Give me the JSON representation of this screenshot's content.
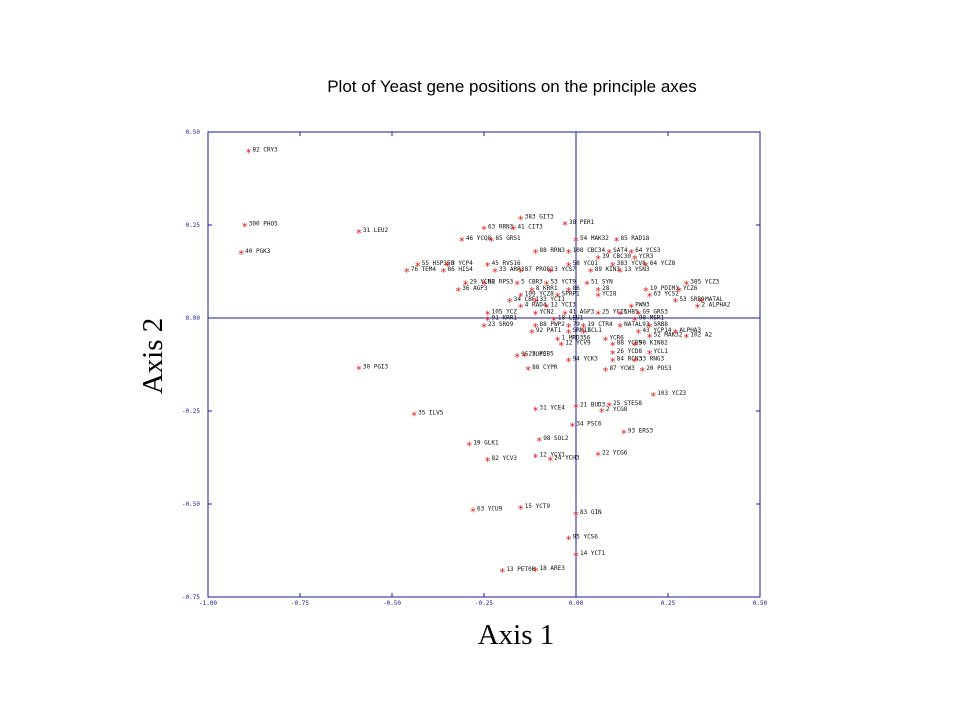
{
  "chart_data": {
    "type": "scatter",
    "title": "Plot of Yeast gene positions on the principle axes",
    "xlabel": "Axis 1",
    "ylabel": "Axis 2",
    "xlim": [
      -1.0,
      0.5
    ],
    "ylim": [
      -0.75,
      0.5
    ],
    "xticks": [
      -1.0,
      -0.75,
      -0.5,
      -0.25,
      0.0,
      0.25,
      0.5
    ],
    "xtick_labels": [
      "-1.00",
      "-0.75",
      "-0.50",
      "-0.25",
      "0.00",
      "0.25",
      "0.50"
    ],
    "yticks": [
      0.5,
      0.25,
      0.0,
      -0.25,
      -0.5,
      -0.75
    ],
    "ytick_labels": [
      "0.50",
      "0.25",
      "0.00",
      "-0.25",
      "-0.50",
      "-0.75"
    ],
    "colors": {
      "axis": "#1a1aa0",
      "points": "#e01010",
      "labels": "#111111"
    },
    "points": [
      {
        "label": "82 CRY3",
        "x": -0.89,
        "y": 0.445
      },
      {
        "label": "300 PHO5",
        "x": -0.9,
        "y": 0.246
      },
      {
        "label": "40 PGK3",
        "x": -0.91,
        "y": 0.172
      },
      {
        "label": "31 LEU2",
        "x": -0.59,
        "y": 0.228
      },
      {
        "label": "30 PGI3",
        "x": -0.59,
        "y": -0.138
      },
      {
        "label": "35 ILV5",
        "x": -0.44,
        "y": -0.262
      },
      {
        "label": "19 GLK1",
        "x": -0.29,
        "y": -0.343
      },
      {
        "label": "82 YCV3",
        "x": -0.24,
        "y": -0.385
      },
      {
        "label": "63 YCU9",
        "x": -0.28,
        "y": -0.52
      },
      {
        "label": "15 YCT9",
        "x": -0.15,
        "y": -0.513
      },
      {
        "label": "13 PET0R",
        "x": -0.2,
        "y": -0.683
      },
      {
        "label": "18 ARE3",
        "x": -0.11,
        "y": -0.68
      },
      {
        "label": "14 YCT1",
        "x": 0.0,
        "y": -0.64
      },
      {
        "label": "95 YCS6",
        "x": -0.02,
        "y": -0.596
      },
      {
        "label": "83 GIN",
        "x": 0.0,
        "y": -0.53
      },
      {
        "label": "22 YCG6",
        "x": 0.06,
        "y": -0.37
      },
      {
        "label": "24 YCH3",
        "x": -0.07,
        "y": -0.383
      },
      {
        "label": "12 YCY1",
        "x": -0.11,
        "y": -0.375
      },
      {
        "label": "93 ERS3",
        "x": 0.13,
        "y": -0.31
      },
      {
        "label": "98 SOL2",
        "x": -0.1,
        "y": -0.33
      },
      {
        "label": "34 PSC6",
        "x": -0.01,
        "y": -0.292
      },
      {
        "label": "31 YCE4",
        "x": -0.11,
        "y": -0.248
      },
      {
        "label": "21 BUD3",
        "x": 0.0,
        "y": -0.24
      },
      {
        "label": "25 STE58",
        "x": 0.09,
        "y": -0.237
      },
      {
        "label": "2 YCG8",
        "x": 0.07,
        "y": -0.253
      },
      {
        "label": "103 YCZ3",
        "x": 0.21,
        "y": -0.21
      },
      {
        "label": "95 YOP3",
        "x": -0.16,
        "y": -0.105
      },
      {
        "label": "23 YCB5",
        "x": -0.14,
        "y": -0.103
      },
      {
        "label": "88 CYPR",
        "x": -0.13,
        "y": -0.14
      },
      {
        "label": "94 YCK3",
        "x": -0.02,
        "y": -0.117
      },
      {
        "label": "84 RCN3",
        "x": 0.1,
        "y": -0.117
      },
      {
        "label": "33 RNG3",
        "x": 0.16,
        "y": -0.117
      },
      {
        "label": "87 YCW3",
        "x": 0.08,
        "y": -0.143
      },
      {
        "label": "20 POS3",
        "x": 0.18,
        "y": -0.143
      },
      {
        "label": "26 YCD8",
        "x": 0.1,
        "y": -0.097
      },
      {
        "label": "YCL1",
        "x": 0.2,
        "y": -0.097
      },
      {
        "label": "12 YCV9",
        "x": -0.04,
        "y": -0.074
      },
      {
        "label": "88 YCB5",
        "x": 0.1,
        "y": -0.074
      },
      {
        "label": "98 KIN82",
        "x": 0.16,
        "y": -0.074
      },
      {
        "label": "1 MRD356",
        "x": -0.05,
        "y": -0.06
      },
      {
        "label": "YCR6",
        "x": 0.08,
        "y": -0.06
      },
      {
        "label": "52 MAK32",
        "x": 0.2,
        "y": -0.053
      },
      {
        "label": "102 A2",
        "x": 0.3,
        "y": -0.053
      },
      {
        "label": "92 PAT1",
        "x": -0.12,
        "y": -0.04
      },
      {
        "label": "SRM1Z",
        "x": -0.02,
        "y": -0.04
      },
      {
        "label": "SCL1",
        "x": 0.02,
        "y": -0.04
      },
      {
        "label": "43 YCP14",
        "x": 0.17,
        "y": -0.04
      },
      {
        "label": "ALPHA3",
        "x": 0.27,
        "y": -0.04
      },
      {
        "label": "23 SRO9",
        "x": -0.25,
        "y": -0.024
      },
      {
        "label": "88 PWP2",
        "x": -0.11,
        "y": -0.024
      },
      {
        "label": "79",
        "x": -0.02,
        "y": -0.024
      },
      {
        "label": "19 CTR4",
        "x": 0.02,
        "y": -0.024
      },
      {
        "label": "NATAL93",
        "x": 0.12,
        "y": -0.024
      },
      {
        "label": "SRB8",
        "x": 0.2,
        "y": -0.024
      },
      {
        "label": "91 KRR1",
        "x": -0.24,
        "y": -0.007
      },
      {
        "label": "18 LEU1",
        "x": -0.06,
        "y": -0.007
      },
      {
        "label": "98 MSR1",
        "x": 0.16,
        "y": -0.007
      },
      {
        "label": "105 YCZ",
        "x": -0.24,
        "y": 0.01
      },
      {
        "label": "YCN2",
        "x": -0.11,
        "y": 0.01
      },
      {
        "label": "41 AGP3",
        "x": -0.03,
        "y": 0.01
      },
      {
        "label": "25 YCI5",
        "x": 0.06,
        "y": 0.01
      },
      {
        "label": "CHB5",
        "x": 0.12,
        "y": 0.01
      },
      {
        "label": "G9 GRS3",
        "x": 0.17,
        "y": 0.01
      },
      {
        "label": "4 RAD4",
        "x": -0.15,
        "y": 0.028
      },
      {
        "label": "12 YCI3",
        "x": -0.08,
        "y": 0.028
      },
      {
        "label": "PWN3",
        "x": 0.15,
        "y": 0.028
      },
      {
        "label": "2 ALPHA2",
        "x": 0.33,
        "y": 0.028
      },
      {
        "label": "34 CBF1",
        "x": -0.18,
        "y": 0.043
      },
      {
        "label": "33 YCI1",
        "x": -0.11,
        "y": 0.043
      },
      {
        "label": "53 SRB9",
        "x": 0.27,
        "y": 0.043
      },
      {
        "label": "MATAL",
        "x": 0.34,
        "y": 0.043
      },
      {
        "label": "109 YCZ8",
        "x": -0.15,
        "y": 0.058
      },
      {
        "label": "SPRP1",
        "x": -0.05,
        "y": 0.058
      },
      {
        "label": "YCI8",
        "x": 0.06,
        "y": 0.058
      },
      {
        "label": "63 YCS2",
        "x": 0.2,
        "y": 0.058
      },
      {
        "label": "8 KRR1",
        "x": -0.12,
        "y": 0.073
      },
      {
        "label": "86",
        "x": -0.02,
        "y": 0.073
      },
      {
        "label": "28",
        "x": 0.06,
        "y": 0.073
      },
      {
        "label": "19 PDIM3",
        "x": 0.19,
        "y": 0.073
      },
      {
        "label": "YCZ6",
        "x": 0.28,
        "y": 0.073
      },
      {
        "label": "29 YCH8",
        "x": -0.3,
        "y": 0.09
      },
      {
        "label": "52 RPS3",
        "x": -0.25,
        "y": 0.09
      },
      {
        "label": "5 CBR3",
        "x": -0.16,
        "y": 0.09
      },
      {
        "label": "53 YCT9",
        "x": -0.08,
        "y": 0.09
      },
      {
        "label": "51 SYN",
        "x": 0.03,
        "y": 0.09
      },
      {
        "label": "385 YCZ3",
        "x": 0.3,
        "y": 0.09
      },
      {
        "label": "36 AGP3",
        "x": -0.32,
        "y": 0.073
      },
      {
        "label": "76 TEM4",
        "x": -0.46,
        "y": 0.123
      },
      {
        "label": "86 HIS4",
        "x": -0.36,
        "y": 0.123
      },
      {
        "label": "33 ARR3",
        "x": -0.22,
        "y": 0.123
      },
      {
        "label": "87 PRO81",
        "x": -0.15,
        "y": 0.123
      },
      {
        "label": "3 YCS7",
        "x": -0.07,
        "y": 0.123
      },
      {
        "label": "89 KIN3",
        "x": 0.04,
        "y": 0.123
      },
      {
        "label": "13 YSN3",
        "x": 0.12,
        "y": 0.123
      },
      {
        "label": "55 HSP358",
        "x": -0.43,
        "y": 0.14
      },
      {
        "label": "3 YCP4",
        "x": -0.35,
        "y": 0.14
      },
      {
        "label": "45 RVS16",
        "x": -0.24,
        "y": 0.14
      },
      {
        "label": "58 YCQ1",
        "x": -0.02,
        "y": 0.14
      },
      {
        "label": "383 YCV8",
        "x": 0.1,
        "y": 0.14
      },
      {
        "label": "64 YCZ8",
        "x": 0.19,
        "y": 0.14
      },
      {
        "label": "39 CBC30",
        "x": 0.06,
        "y": 0.158
      },
      {
        "label": "YCR3",
        "x": 0.16,
        "y": 0.158
      },
      {
        "label": "88 RRN3",
        "x": -0.11,
        "y": 0.175
      },
      {
        "label": "108 CBC34",
        "x": -0.02,
        "y": 0.175
      },
      {
        "label": "SAT4",
        "x": 0.09,
        "y": 0.175
      },
      {
        "label": "64 YCS3",
        "x": 0.15,
        "y": 0.175
      },
      {
        "label": "46 YCQ8",
        "x": -0.31,
        "y": 0.207
      },
      {
        "label": "85 GRS1",
        "x": -0.23,
        "y": 0.207
      },
      {
        "label": "54 MAK32",
        "x": 0.0,
        "y": 0.207
      },
      {
        "label": "85 RAD18",
        "x": 0.11,
        "y": 0.207
      },
      {
        "label": "63 RRN3",
        "x": -0.25,
        "y": 0.238
      },
      {
        "label": "41 CIT3",
        "x": -0.17,
        "y": 0.238
      },
      {
        "label": "38 PER1",
        "x": -0.03,
        "y": 0.25
      },
      {
        "label": "383 GIT3",
        "x": -0.15,
        "y": 0.265
      }
    ]
  }
}
